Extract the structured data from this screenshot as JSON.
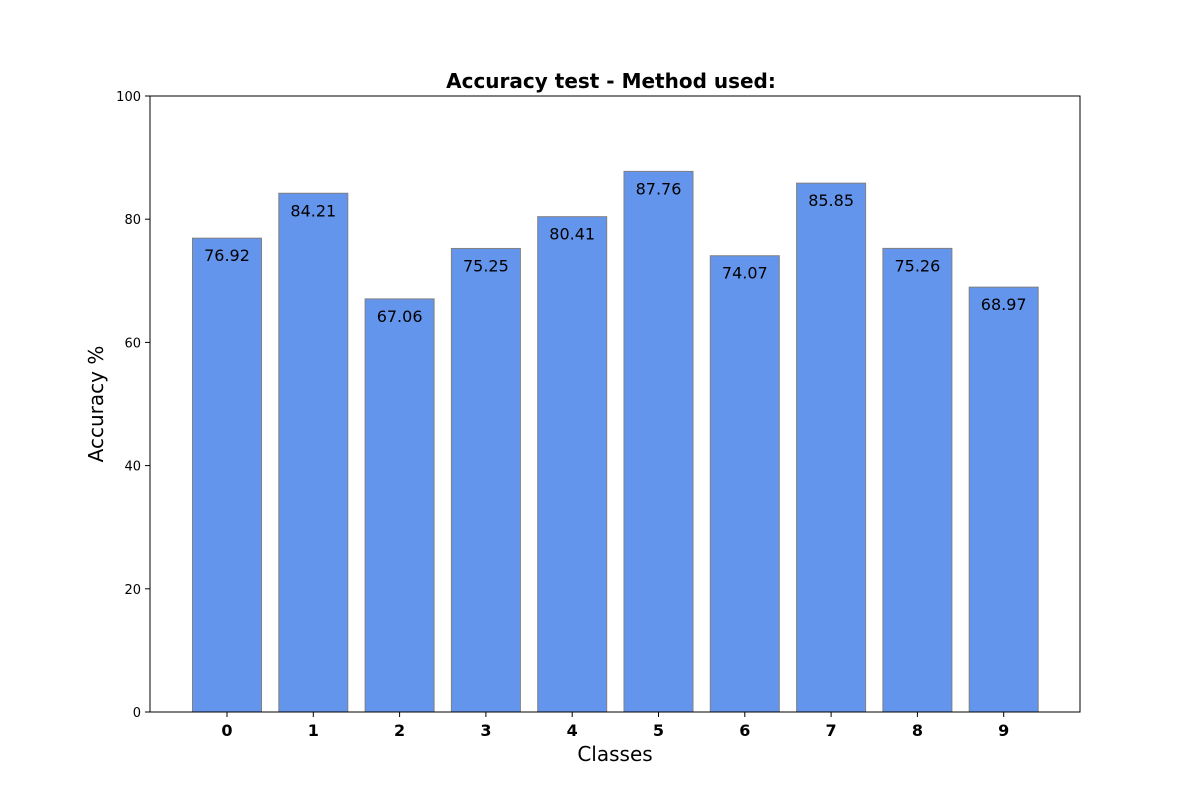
{
  "chart_data": {
    "type": "bar",
    "title": "Accuracy test - Method used:",
    "xlabel": "Classes",
    "ylabel": "Accuracy %",
    "categories": [
      "0",
      "1",
      "2",
      "3",
      "4",
      "5",
      "6",
      "7",
      "8",
      "9"
    ],
    "values": [
      76.92,
      84.21,
      67.06,
      75.25,
      80.41,
      87.76,
      74.07,
      85.85,
      75.26,
      68.97
    ],
    "value_labels": [
      "76.92",
      "84.21",
      "67.06",
      "75.25",
      "80.41",
      "87.76",
      "74.07",
      "85.85",
      "75.26",
      "68.97"
    ],
    "ylim": [
      0,
      100
    ],
    "y_ticks": [
      0,
      20,
      40,
      60,
      80,
      100
    ],
    "grid": false,
    "legend": "none",
    "bar_color": "#6495ED",
    "bar_edge_color": "#808080"
  }
}
